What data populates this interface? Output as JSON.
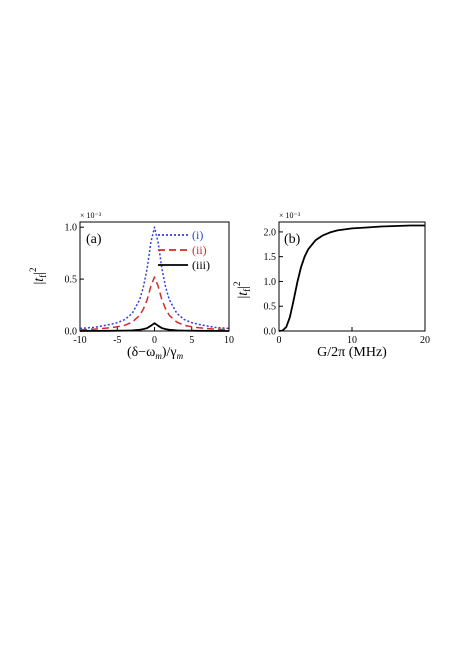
{
  "chart_data": [
    {
      "type": "line",
      "panel_label": "(a)",
      "xlabel": "(δ−ω_m)/γ_m",
      "ylabel": "|t_f|^2",
      "y_multiplier": "× 10⁻³",
      "xlim": [
        -10,
        10
      ],
      "ylim": [
        0,
        1.05
      ],
      "xticks": [
        -10,
        -5,
        0,
        5,
        10
      ],
      "yticks": [
        "0.0",
        "0.5",
        "1.0"
      ],
      "grid": false,
      "legend_position": "top-right",
      "series": [
        {
          "name": "(i)",
          "color": "#2f3fd8",
          "style": "dotted",
          "x": [
            -10,
            -8,
            -6,
            -5,
            -4,
            -3,
            -2,
            -1.5,
            -1,
            -0.5,
            0,
            0.5,
            1,
            1.5,
            2,
            3,
            4,
            5,
            6,
            8,
            10
          ],
          "y": [
            0.025,
            0.036,
            0.063,
            0.08,
            0.11,
            0.17,
            0.3,
            0.42,
            0.6,
            0.85,
            1.0,
            0.85,
            0.6,
            0.42,
            0.3,
            0.17,
            0.11,
            0.08,
            0.063,
            0.036,
            0.025
          ]
        },
        {
          "name": "(ii)",
          "color": "#d42a2a",
          "style": "dashed",
          "x": [
            -10,
            -8,
            -6,
            -5,
            -4,
            -3,
            -2,
            -1.5,
            -1,
            -0.5,
            0,
            0.5,
            1,
            1.5,
            2,
            3,
            4,
            5,
            6,
            8,
            10
          ],
          "y": [
            0.012,
            0.018,
            0.031,
            0.04,
            0.055,
            0.085,
            0.15,
            0.21,
            0.3,
            0.43,
            0.52,
            0.43,
            0.3,
            0.21,
            0.15,
            0.085,
            0.055,
            0.04,
            0.031,
            0.018,
            0.012
          ]
        },
        {
          "name": "(iii)",
          "color": "#000000",
          "style": "solid",
          "x": [
            -10,
            -6,
            -4,
            -3,
            -2,
            -1.5,
            -1,
            -0.5,
            0,
            0.5,
            1,
            1.5,
            2,
            3,
            4,
            6,
            10
          ],
          "y": [
            0.0,
            0.002,
            0.004,
            0.006,
            0.012,
            0.018,
            0.028,
            0.05,
            0.075,
            0.05,
            0.028,
            0.018,
            0.012,
            0.006,
            0.004,
            0.002,
            0.0
          ]
        }
      ]
    },
    {
      "type": "line",
      "panel_label": "(b)",
      "xlabel": "G/2π (MHz)",
      "ylabel": "|t_f|^2",
      "y_multiplier": "× 10⁻³",
      "xlim": [
        0,
        20
      ],
      "ylim": [
        0,
        2.2
      ],
      "xticks": [
        0,
        10,
        20
      ],
      "yticks": [
        "0.0",
        "0.5",
        "1.0",
        "1.5",
        "2.0"
      ],
      "grid": false,
      "series": [
        {
          "color": "#000000",
          "style": "solid",
          "x": [
            0,
            0.5,
            1,
            1.5,
            2,
            2.5,
            3,
            3.5,
            4,
            5,
            6,
            7,
            8,
            9,
            10,
            12,
            14,
            16,
            18,
            20
          ],
          "y": [
            0.0,
            0.01,
            0.08,
            0.28,
            0.62,
            0.98,
            1.28,
            1.5,
            1.65,
            1.83,
            1.93,
            1.99,
            2.03,
            2.05,
            2.07,
            2.09,
            2.11,
            2.12,
            2.13,
            2.13
          ]
        }
      ]
    }
  ]
}
